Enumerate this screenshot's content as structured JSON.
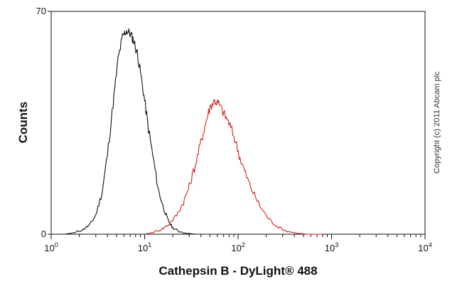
{
  "chart_data": {
    "type": "line",
    "xlabel": "Cathepsin B - DyLight® 488",
    "ylabel": "Counts",
    "x_scale": "log",
    "xlim": [
      1,
      10000
    ],
    "ylim": [
      0,
      70
    ],
    "x_ticks": [
      {
        "value": 1,
        "base": "10",
        "exp": "0"
      },
      {
        "value": 10,
        "base": "10",
        "exp": "1"
      },
      {
        "value": 100,
        "base": "10",
        "exp": "2"
      },
      {
        "value": 1000,
        "base": "10",
        "exp": "3"
      },
      {
        "value": 10000,
        "base": "10",
        "exp": "4"
      }
    ],
    "y_ticks": [
      {
        "value": 0,
        "label": "0"
      },
      {
        "value": 70,
        "label": "70"
      }
    ],
    "grid": false,
    "series": [
      {
        "color": "#111111",
        "x": [
          1.4,
          1.8,
          2.2,
          2.6,
          3.0,
          3.5,
          4.0,
          4.6,
          5.2,
          5.8,
          6.4,
          7.0,
          7.6,
          8.3,
          9.0,
          10.0,
          11.0,
          12.5,
          14.0,
          16.0,
          18.0,
          20.0,
          23.0,
          28.0,
          35.0
        ],
        "y": [
          0,
          0.5,
          1.5,
          3,
          6,
          13,
          25,
          41,
          55,
          62,
          64,
          63,
          61,
          57,
          51,
          42,
          33,
          23,
          14,
          8,
          4,
          2,
          1,
          0.3,
          0
        ]
      },
      {
        "color": "#d42020",
        "x": [
          10,
          12,
          15,
          18,
          22,
          26,
          30,
          35,
          40,
          45,
          50,
          56,
          62,
          70,
          80,
          92,
          105,
          120,
          140,
          170,
          210,
          260,
          330,
          420,
          550,
          800
        ],
        "y": [
          0,
          0.5,
          1.5,
          3,
          6,
          10,
          15,
          22,
          29,
          35,
          40,
          42,
          41,
          38,
          35,
          30,
          24,
          19,
          14,
          9,
          5,
          2.5,
          1,
          0.3,
          0,
          0
        ]
      }
    ]
  },
  "copyright": "Copyright (c) 2011 Abcam plc",
  "colors": {
    "frame": "#111111",
    "series_control": "#111111",
    "series_stained": "#d42020"
  }
}
